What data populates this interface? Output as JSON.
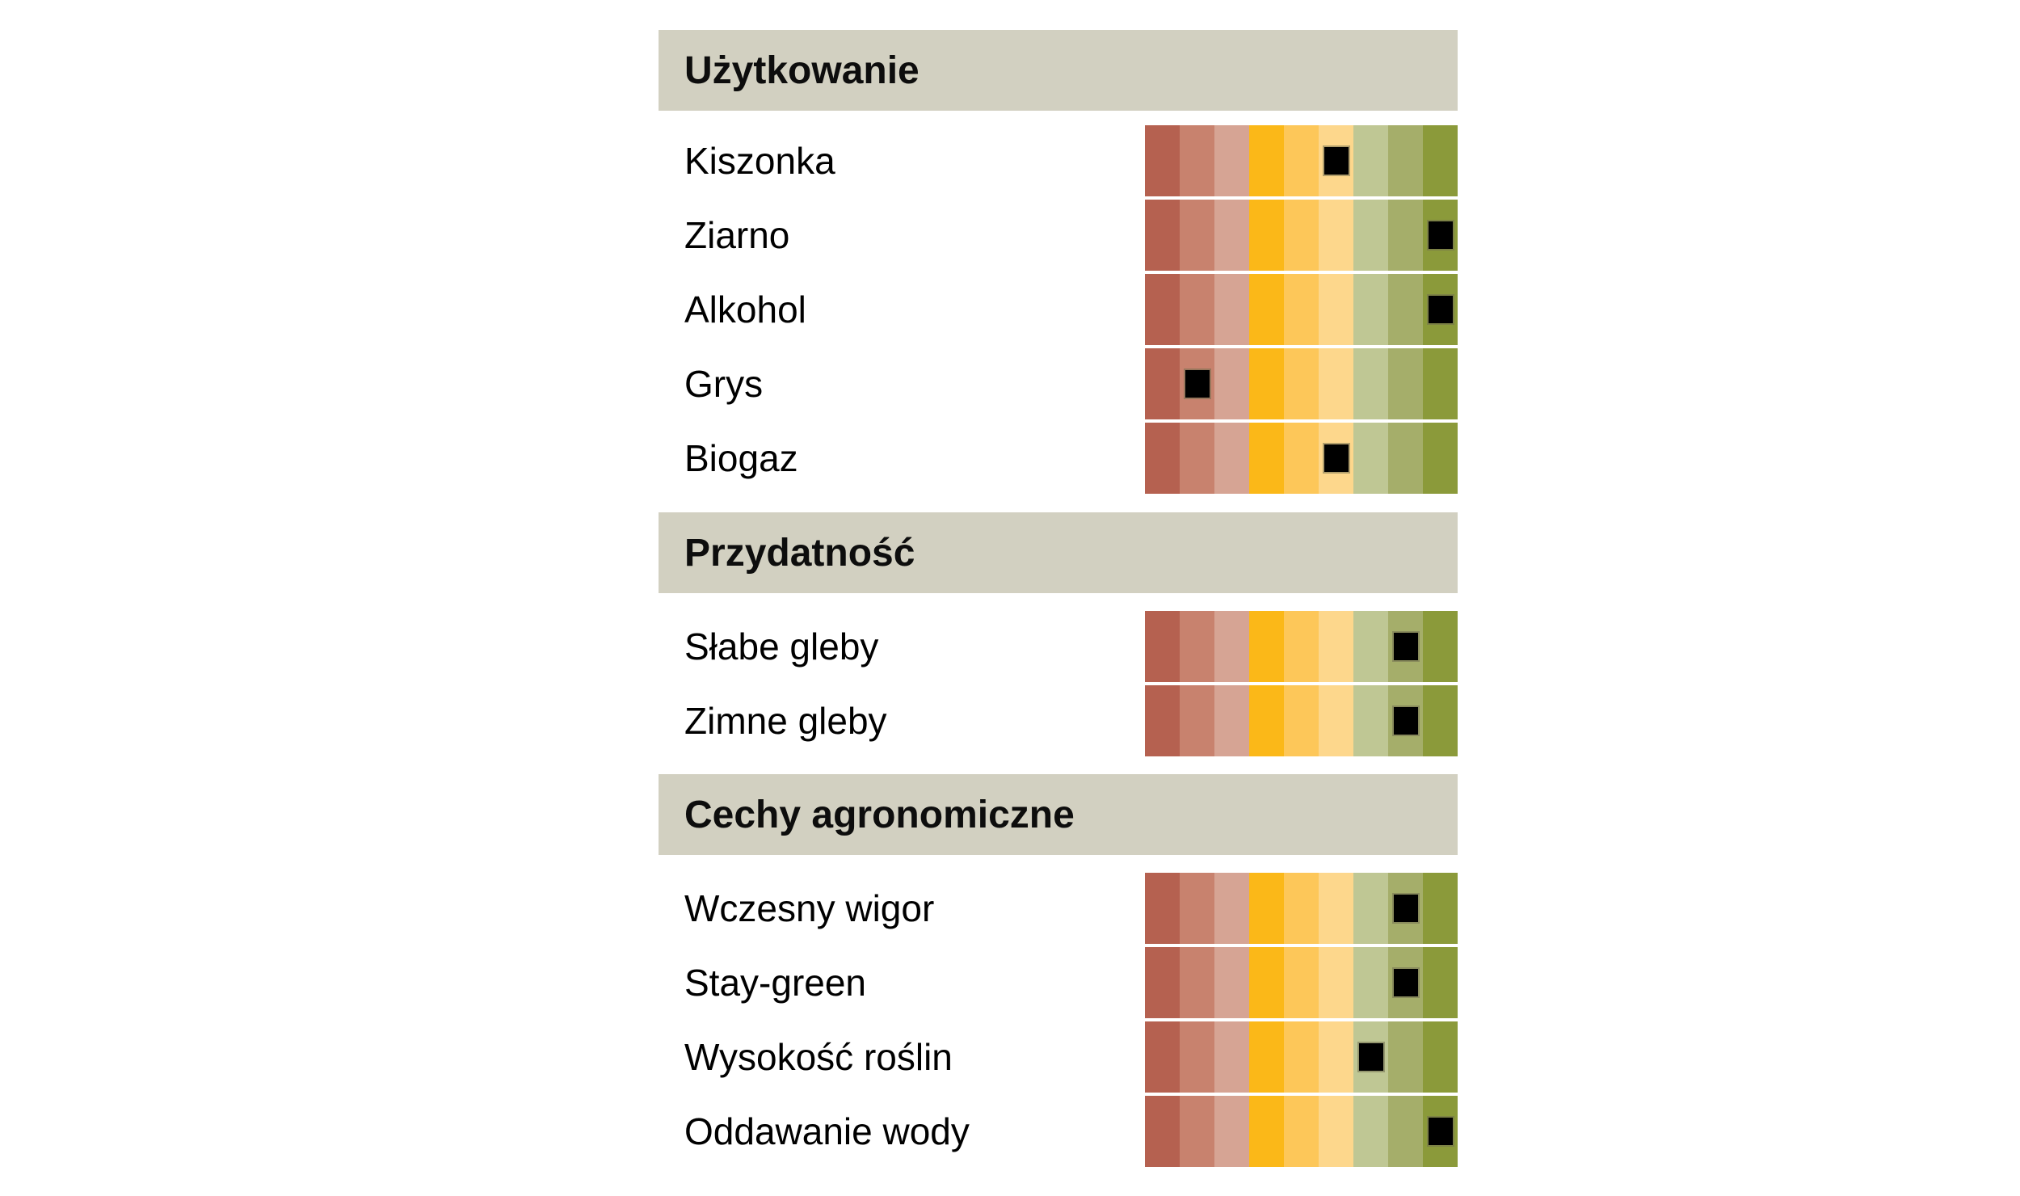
{
  "chart_data": {
    "type": "table",
    "title": "",
    "description": "Rating chart: black square marker on a 9-step red-to-green color scale for each trait",
    "scale": {
      "min": 1,
      "max": 9,
      "segment_colors": [
        "#b56150",
        "#c8826e",
        "#d6a494",
        "#fbb818",
        "#fdc759",
        "#fdd78c",
        "#bfc794",
        "#a5ae6a",
        "#8b9a3a"
      ]
    },
    "sections": [
      {
        "title": "Użytkowanie",
        "rows": [
          {
            "label": "Kiszonka",
            "value": 6
          },
          {
            "label": "Ziarno",
            "value": 9
          },
          {
            "label": "Alkohol",
            "value": 9
          },
          {
            "label": "Grys",
            "value": 2
          },
          {
            "label": "Biogaz",
            "value": 6
          }
        ]
      },
      {
        "title": "Przydatność",
        "rows": [
          {
            "label": "Słabe gleby",
            "value": 8
          },
          {
            "label": "Zimne gleby",
            "value": 8
          }
        ]
      },
      {
        "title": "Cechy agronomiczne",
        "rows": [
          {
            "label": "Wczesny wigor",
            "value": 8
          },
          {
            "label": "Stay-green",
            "value": 8
          },
          {
            "label": "Wysokość roślin",
            "value": 7
          },
          {
            "label": "Oddawanie wody",
            "value": 9
          }
        ]
      }
    ],
    "marker": {
      "shape": "square",
      "color": "#000000"
    }
  },
  "colors": {
    "section_header_bg": "#d2d0c1",
    "background": "#ffffff",
    "marker": "#000000"
  }
}
